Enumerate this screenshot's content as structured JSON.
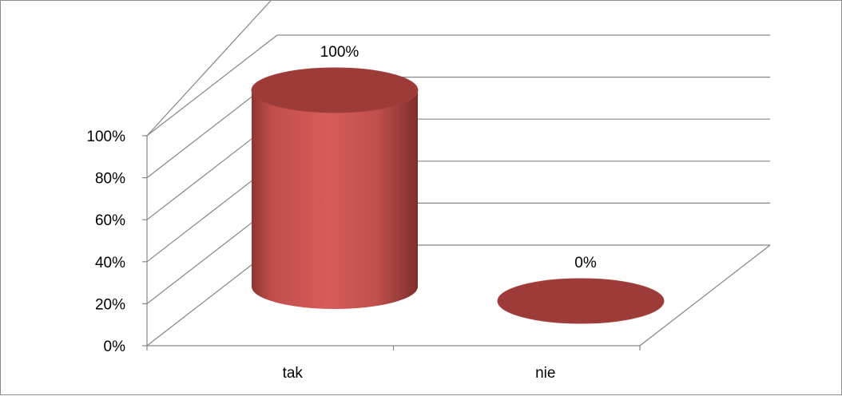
{
  "chart_data": {
    "type": "bar",
    "style": "3d-cylinder",
    "categories": [
      "tak",
      "nie"
    ],
    "values": [
      100,
      0
    ],
    "data_labels": [
      "100%",
      "0%"
    ],
    "yticks": [
      "0%",
      "20%",
      "40%",
      "60%",
      "80%",
      "100%"
    ],
    "ylim": [
      0,
      100
    ],
    "grid": true,
    "legend": "none",
    "colors": {
      "bar": "#c0504d",
      "bar_light": "#d4605d",
      "bar_dark": "#8e3533",
      "top": "#9c3b38"
    }
  }
}
